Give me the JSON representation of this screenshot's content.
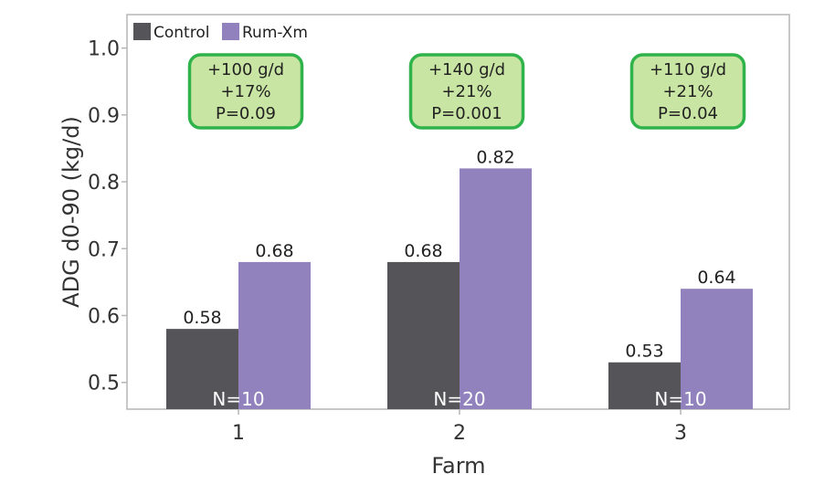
{
  "chart_data": {
    "type": "bar",
    "title": "",
    "xlabel": "Farm",
    "ylabel": "ADG d0-90 (kg/d)",
    "categories": [
      "1",
      "2",
      "3"
    ],
    "series": [
      {
        "name": "Control",
        "color": "#545459",
        "values": [
          0.58,
          0.68,
          0.53
        ],
        "labels": [
          "0.58",
          "0.68",
          "0.53"
        ]
      },
      {
        "name": "Rum-Xm",
        "color": "#9181bd",
        "values": [
          0.68,
          0.82,
          0.64
        ],
        "labels": [
          "0.68",
          "0.82",
          "0.64"
        ]
      }
    ],
    "ylim": [
      0.46,
      1.05
    ],
    "yticks": [
      "0.5",
      "0.6",
      "0.7",
      "0.8",
      "0.9",
      "1.0"
    ],
    "sample_sizes": [
      "N=10",
      "N=20",
      "N=10"
    ],
    "annotations": [
      {
        "lines": [
          "+100 g/d",
          "+17%",
          "P=0.09"
        ]
      },
      {
        "lines": [
          "+140 g/d",
          "+21%",
          "P=0.001"
        ]
      },
      {
        "lines": [
          "+110 g/d",
          "+21%",
          "P=0.04"
        ]
      }
    ],
    "annotation_fill": "#c9e5a3",
    "annotation_border": "#2fb34a",
    "legend_position": "top-left",
    "grid": false
  }
}
